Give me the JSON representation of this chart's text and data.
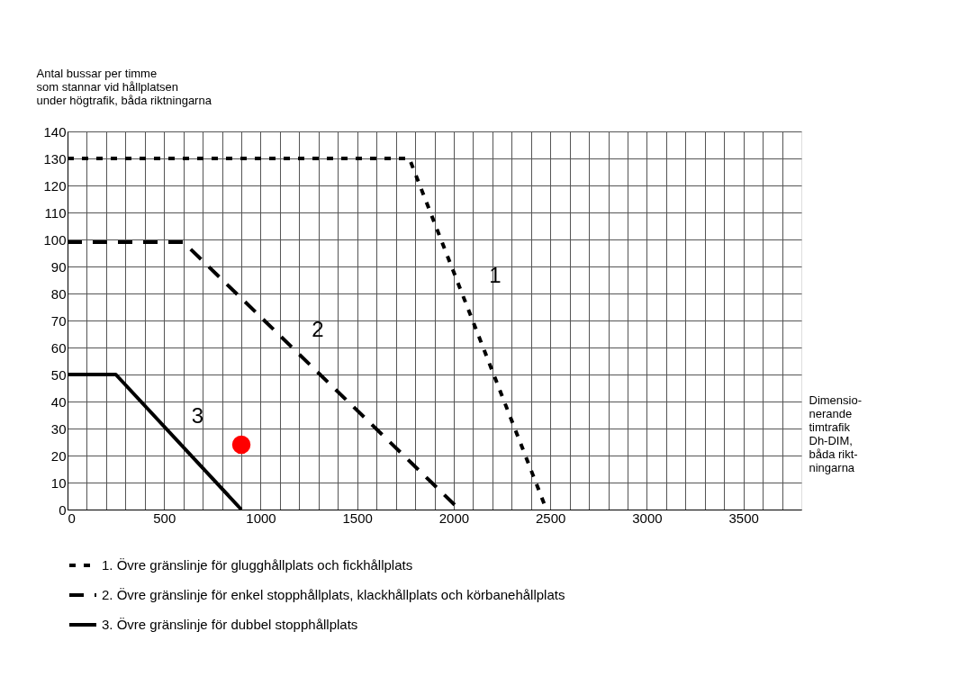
{
  "chart_data": {
    "type": "line",
    "ylabel": "Antal bussar per timme\nsom stannar vid hållplatsen\nunder högtrafik, båda riktningarna",
    "xlabel": "Dimensio-\nnerande\ntimtrafik\nDh-DIM,\nbåda rikt-\nningarna",
    "series": [
      {
        "name": "1. Övre gränslinje för glugghållplats och fickhållplats",
        "color": "#000000",
        "line_style": "dotted",
        "x": [
          0,
          1770,
          2480
        ],
        "values": [
          130,
          130,
          0
        ]
      },
      {
        "name": "2. Övre gränslinje för enkel stopphållplats, klackhållplats och körbanehållplats",
        "color": "#000000",
        "line_style": "dashed",
        "x": [
          0,
          600,
          2030
        ],
        "values": [
          99,
          99,
          0
        ]
      },
      {
        "name": "3. Övre gränslinje för dubbel stopphållplats",
        "color": "#000000",
        "line_style": "solid",
        "x": [
          0,
          250,
          900
        ],
        "values": [
          50,
          50,
          0
        ]
      },
      {
        "type": "scatter",
        "color": "#ff0000",
        "marker": "circle",
        "x": [
          900
        ],
        "values": [
          24
        ]
      }
    ],
    "annotations": [
      "1",
      "2",
      "3"
    ],
    "xlim": [
      0,
      3800
    ],
    "xticks": [
      0,
      {
        "value": 100,
        "label": null
      },
      {
        "value": 200,
        "label": null
      },
      {
        "value": 300,
        "label": null
      },
      {
        "value": 400,
        "label": null
      },
      500,
      {
        "value": 600,
        "label": null
      },
      {
        "value": 700,
        "label": null
      },
      {
        "value": 800,
        "label": null
      },
      {
        "value": 900,
        "label": null
      },
      1000,
      {
        "value": 1100,
        "label": null
      },
      {
        "value": 1200,
        "label": null
      },
      {
        "value": 1300,
        "label": null
      },
      {
        "value": 1400,
        "label": null
      },
      1500,
      {
        "value": 1600,
        "label": null
      },
      {
        "value": 1700,
        "label": null
      },
      {
        "value": 1800,
        "label": null
      },
      {
        "value": 1900,
        "label": null
      },
      2000,
      {
        "value": 2100,
        "label": null
      },
      {
        "value": 2200,
        "label": null
      },
      {
        "value": 2300,
        "label": null
      },
      {
        "value": 2400,
        "label": null
      },
      2500,
      {
        "value": 2600,
        "label": null
      },
      {
        "value": 2700,
        "label": null
      },
      {
        "value": 2800,
        "label": null
      },
      {
        "value": 2900,
        "label": null
      },
      3000,
      {
        "value": 3100,
        "label": null
      },
      {
        "value": 3200,
        "label": null
      },
      {
        "value": 3300,
        "label": null
      },
      {
        "value": 3400,
        "label": null
      },
      3500,
      {
        "value": 3600,
        "label": null
      },
      {
        "value": 3700,
        "label": null
      }
    ],
    "ylim": [
      0,
      140
    ],
    "yticks": [
      0,
      10,
      20,
      30,
      40,
      50,
      60,
      70,
      80,
      90,
      100,
      110,
      120,
      130,
      140
    ],
    "grid": true,
    "legend": "bottom"
  }
}
